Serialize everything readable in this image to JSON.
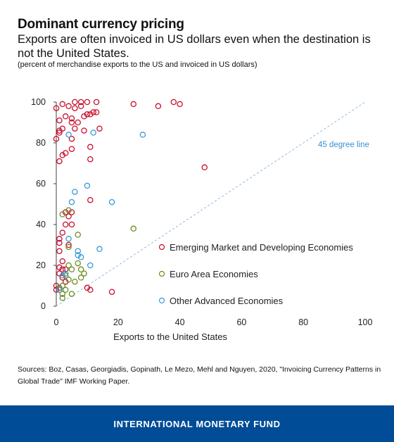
{
  "title": "Dominant currency pricing",
  "subtitle": "Exports are often invoiced in US dollars even when the destination is not the United States.",
  "note": "(percent of merchandise exports to the US and invoiced in US dollars)",
  "source": "Sources: Boz, Casas, Georgiadis, Gopinath, Le Mezo, Mehl and Nguyen, 2020, \"Invoicing Currency Patterns in Global Trade\" IMF Working Paper.",
  "footer": "INTERNATIONAL MONETARY FUND",
  "colors": {
    "emerging": "#c8102e",
    "euro": "#6b8e23",
    "advanced": "#3a9bd6",
    "reference_line": "#8fb8e0",
    "footer_bg": "#004c97"
  },
  "chart_data": {
    "type": "scatter",
    "xlabel": "Exports to the United States",
    "ylabel": "",
    "xlim": [
      0,
      100
    ],
    "ylim": [
      0,
      100
    ],
    "xticks": [
      "0",
      "20",
      "40",
      "60",
      "80",
      "100"
    ],
    "yticks": [
      "0",
      "20",
      "40",
      "60",
      "80",
      "100"
    ],
    "grid": false,
    "legend_position": "lower-right",
    "reference_line": {
      "label": "45 degree line",
      "from": [
        0,
        0
      ],
      "to": [
        100,
        100
      ]
    },
    "series": [
      {
        "name": "Emerging Market and Developing Economies",
        "color": "#c8102e",
        "points": [
          [
            0,
            97
          ],
          [
            2,
            99
          ],
          [
            4,
            98
          ],
          [
            6,
            100
          ],
          [
            8,
            100
          ],
          [
            10,
            100
          ],
          [
            13,
            100
          ],
          [
            25,
            99
          ],
          [
            33,
            98
          ],
          [
            38,
            100
          ],
          [
            40,
            99
          ],
          [
            6,
            97
          ],
          [
            8,
            98
          ],
          [
            10,
            94
          ],
          [
            12,
            95
          ],
          [
            13,
            95
          ],
          [
            3,
            93
          ],
          [
            5,
            92
          ],
          [
            7,
            90
          ],
          [
            9,
            93
          ],
          [
            11,
            94
          ],
          [
            1,
            91
          ],
          [
            5,
            90
          ],
          [
            1,
            86
          ],
          [
            2,
            87
          ],
          [
            1,
            85
          ],
          [
            6,
            87
          ],
          [
            9,
            86
          ],
          [
            14,
            87
          ],
          [
            0,
            82
          ],
          [
            5,
            82
          ],
          [
            5,
            77
          ],
          [
            3,
            75
          ],
          [
            2,
            74
          ],
          [
            11,
            78
          ],
          [
            11,
            72
          ],
          [
            1,
            71
          ],
          [
            48,
            68
          ],
          [
            11,
            52
          ],
          [
            3,
            46
          ],
          [
            5,
            46
          ],
          [
            4,
            44
          ],
          [
            3,
            40
          ],
          [
            5,
            40
          ],
          [
            2,
            36
          ],
          [
            1,
            33
          ],
          [
            1,
            31
          ],
          [
            4,
            30
          ],
          [
            1,
            27
          ],
          [
            2,
            22
          ],
          [
            1,
            19
          ],
          [
            2,
            18
          ],
          [
            3,
            18
          ],
          [
            1,
            16
          ],
          [
            2,
            14
          ],
          [
            3,
            12
          ],
          [
            0,
            10
          ],
          [
            1,
            9
          ],
          [
            0,
            8
          ],
          [
            1,
            8
          ],
          [
            10,
            9
          ],
          [
            11,
            8
          ],
          [
            18,
            7
          ]
        ]
      },
      {
        "name": "Euro Area Economies",
        "color": "#6b8e23",
        "points": [
          [
            2,
            45
          ],
          [
            4,
            47
          ],
          [
            25,
            38
          ],
          [
            7,
            35
          ],
          [
            4,
            29
          ],
          [
            7,
            21
          ],
          [
            4,
            20
          ],
          [
            5,
            18
          ],
          [
            8,
            18
          ],
          [
            9,
            16
          ],
          [
            8,
            14
          ],
          [
            3,
            15
          ],
          [
            4,
            13
          ],
          [
            6,
            12
          ],
          [
            2,
            10
          ],
          [
            1,
            9
          ],
          [
            3,
            8
          ],
          [
            2,
            6
          ],
          [
            5,
            6
          ],
          [
            2,
            4
          ]
        ]
      },
      {
        "name": "Other Advanced Economies",
        "color": "#3a9bd6",
        "points": [
          [
            4,
            84
          ],
          [
            12,
            85
          ],
          [
            28,
            84
          ],
          [
            10,
            59
          ],
          [
            6,
            56
          ],
          [
            5,
            51
          ],
          [
            18,
            51
          ],
          [
            4,
            33
          ],
          [
            7,
            27
          ],
          [
            14,
            28
          ],
          [
            7,
            25
          ],
          [
            8,
            24
          ],
          [
            11,
            20
          ],
          [
            3,
            16
          ],
          [
            2,
            15
          ],
          [
            1,
            8
          ]
        ]
      }
    ]
  }
}
